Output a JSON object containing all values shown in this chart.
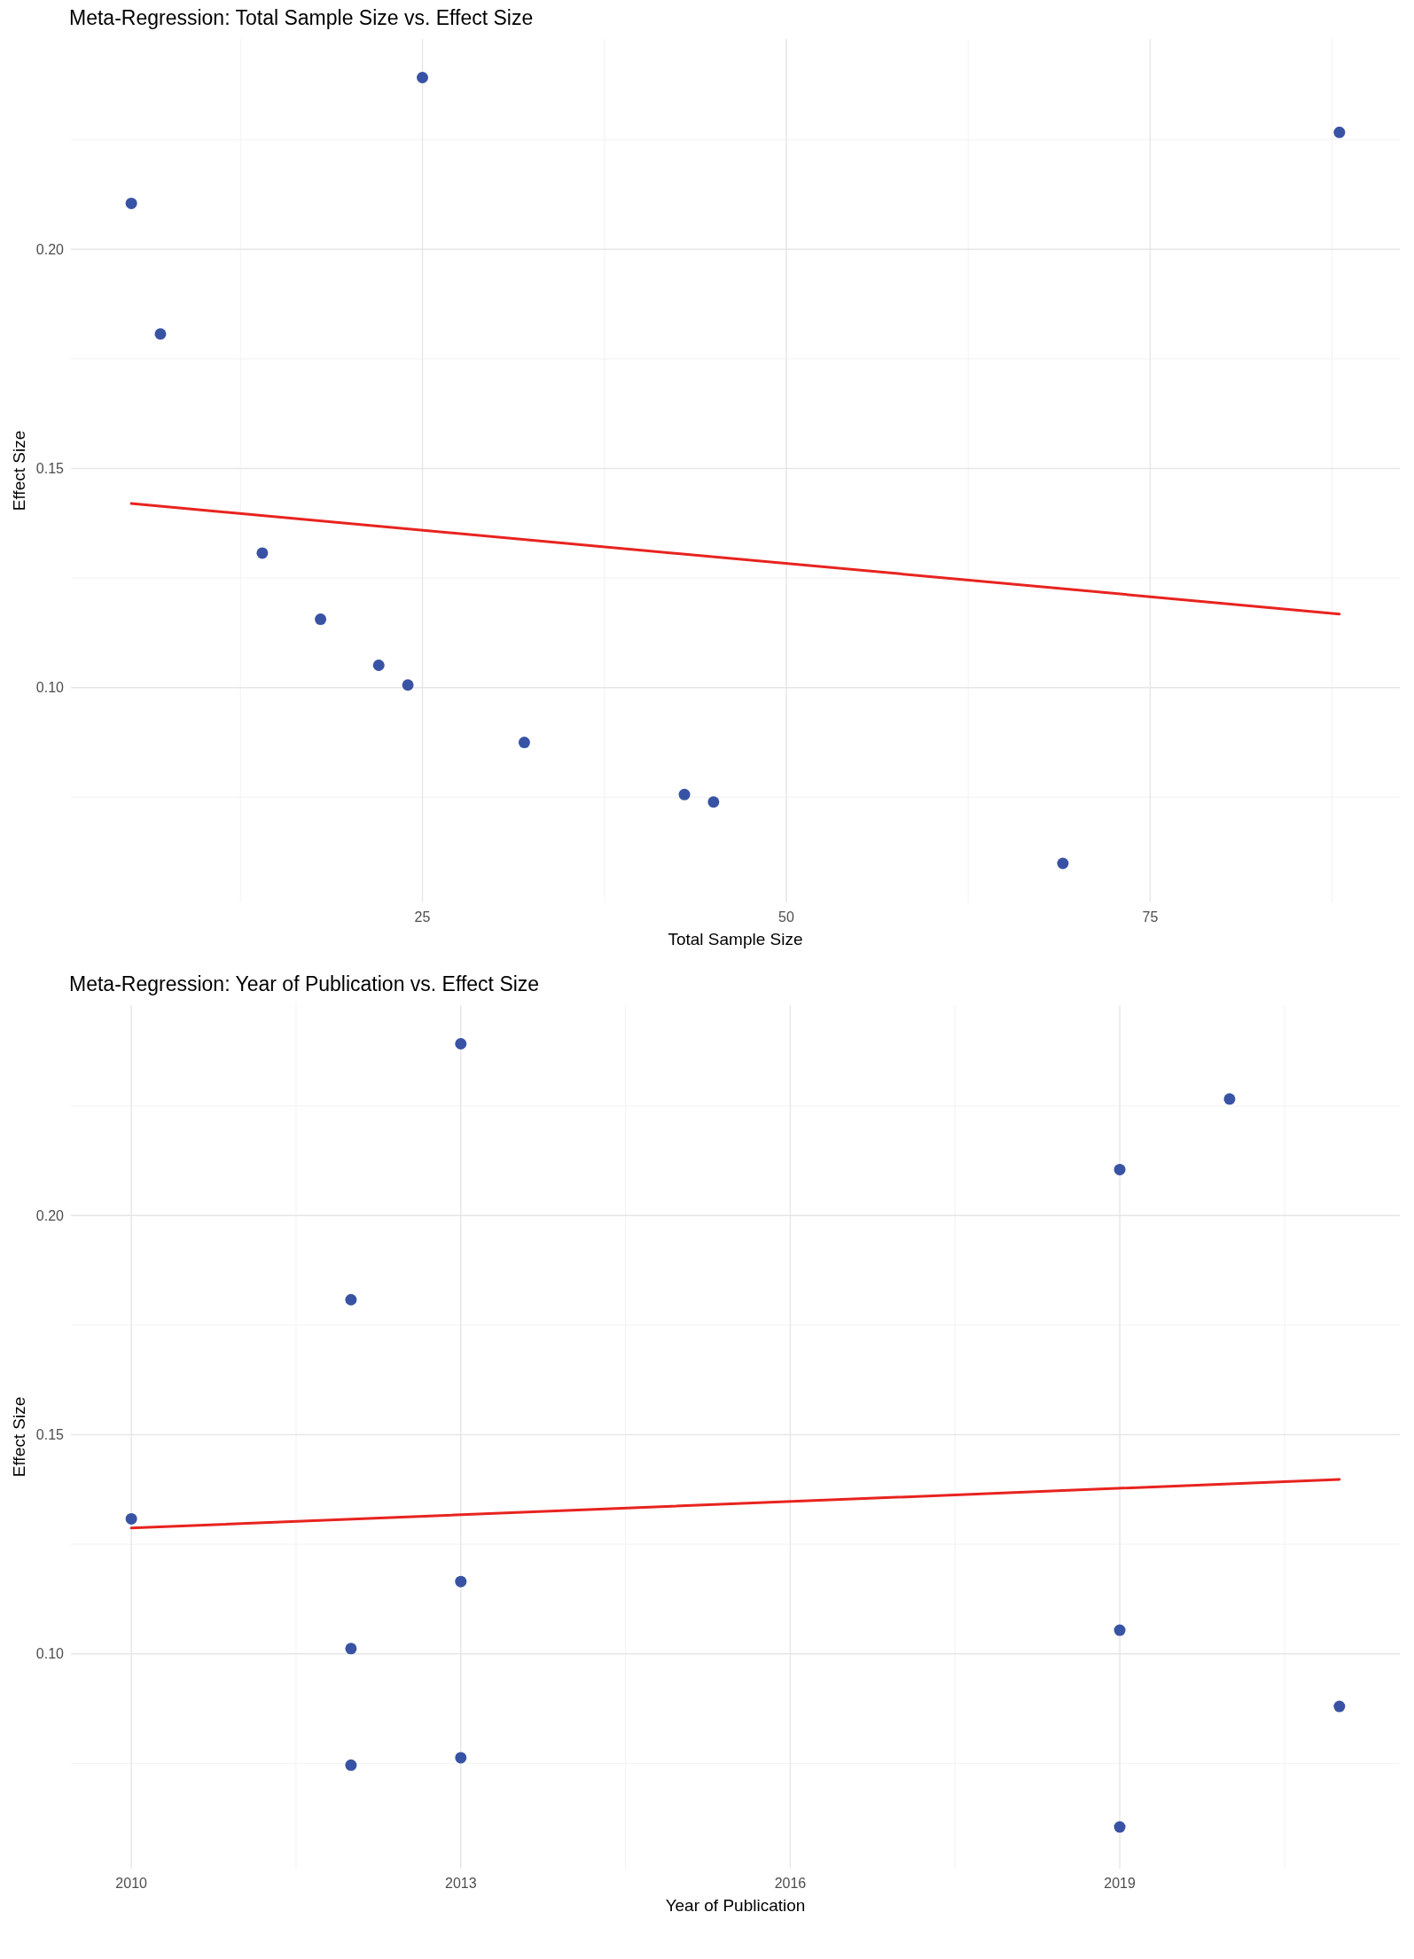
{
  "chart_data": [
    {
      "type": "scatter",
      "title": "Meta-Regression: Total Sample Size vs. Effect Size",
      "xlabel": "Total Sample Size",
      "ylabel": "Effect Size",
      "series": [
        {
          "color": "#3953a4",
          "marker": "circle",
          "x": [
            5,
            7,
            14,
            18,
            22,
            24,
            25,
            32,
            43,
            45,
            69,
            88
          ],
          "values": [
            0.2105,
            0.1807,
            0.1307,
            0.1156,
            0.1051,
            0.1006,
            0.2392,
            0.0875,
            0.0756,
            0.0739,
            0.0599,
            0.2267
          ]
        },
        {
          "type": "line",
          "color": "#e8231f",
          "x": [
            5,
            88
          ],
          "values": [
            0.142,
            0.1168
          ]
        }
      ],
      "xlim": [
        0.85,
        92.15
      ],
      "ylim": [
        0.051,
        0.248
      ],
      "xticks": [
        25,
        50,
        75
      ],
      "yticks": [
        {
          "value": 0.1,
          "label": "0.10"
        },
        {
          "value": 0.15,
          "label": "0.15"
        },
        {
          "value": 0.2,
          "label": "0.20"
        }
      ],
      "grid": true
    },
    {
      "type": "scatter",
      "title": "Meta-Regression: Year of Publication vs. Effect Size",
      "xlabel": "Year of Publication",
      "ylabel": "Effect Size",
      "series": [
        {
          "color": "#3953a4",
          "marker": "circle",
          "x": [
            2010,
            2012,
            2012,
            2012,
            2013,
            2013,
            2013,
            2019,
            2019,
            2019,
            2020,
            2021
          ],
          "values": [
            0.1308,
            0.1808,
            0.1012,
            0.0746,
            0.2392,
            0.1165,
            0.0763,
            0.2105,
            0.1054,
            0.0605,
            0.2266,
            0.088
          ]
        },
        {
          "type": "line",
          "color": "#e8231f",
          "x": [
            2010,
            2021
          ],
          "values": [
            0.1287,
            0.1398
          ]
        }
      ],
      "xlim": [
        2009.45,
        2021.55
      ],
      "ylim": [
        0.051,
        0.248
      ],
      "xticks": [
        2010,
        2013,
        2016,
        2019
      ],
      "yticks": [
        {
          "value": 0.1,
          "label": "0.10"
        },
        {
          "value": 0.15,
          "label": "0.15"
        },
        {
          "value": 0.2,
          "label": "0.20"
        }
      ],
      "grid": true
    }
  ]
}
